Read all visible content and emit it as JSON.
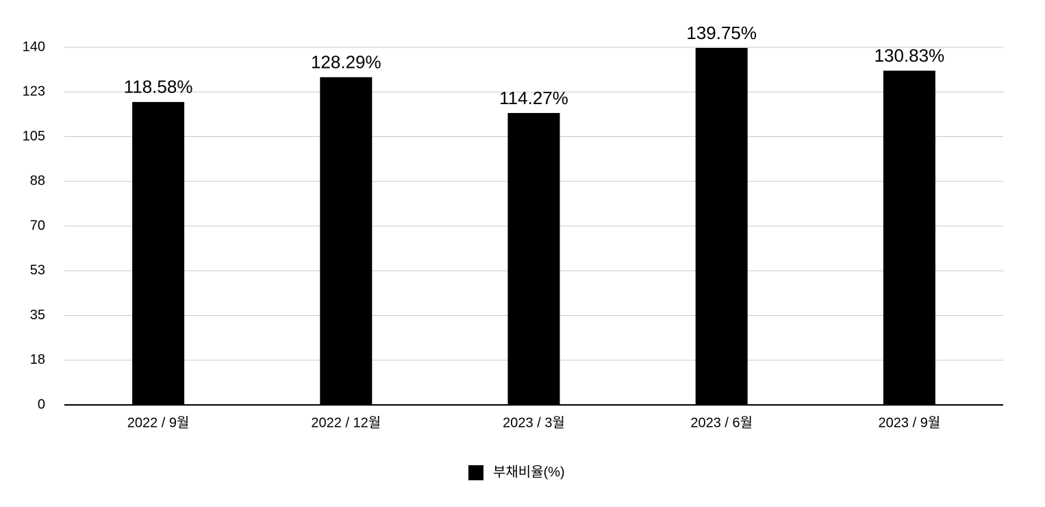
{
  "chart_data": {
    "type": "bar",
    "categories": [
      "2022 / 9월",
      "2022 / 12월",
      "2023 / 3월",
      "2023 / 6월",
      "2023 / 9월"
    ],
    "series": [
      {
        "name": "부채비율(%)",
        "color": "#000000",
        "values": [
          118.58,
          128.29,
          114.27,
          139.75,
          130.83
        ],
        "value_labels": [
          "118.58%",
          "128.29%",
          "114.27%",
          "139.75%",
          "130.83%"
        ]
      }
    ],
    "ylim": [
      0,
      140
    ],
    "yticks": [
      0,
      {
        "value": 17.5,
        "label": "18"
      },
      35,
      {
        "value": 52.5,
        "label": "53"
      },
      70,
      {
        "value": 87.5,
        "label": "88"
      },
      105,
      {
        "value": 122.5,
        "label": "123"
      },
      140
    ],
    "grid": true,
    "legend": "bottom"
  }
}
